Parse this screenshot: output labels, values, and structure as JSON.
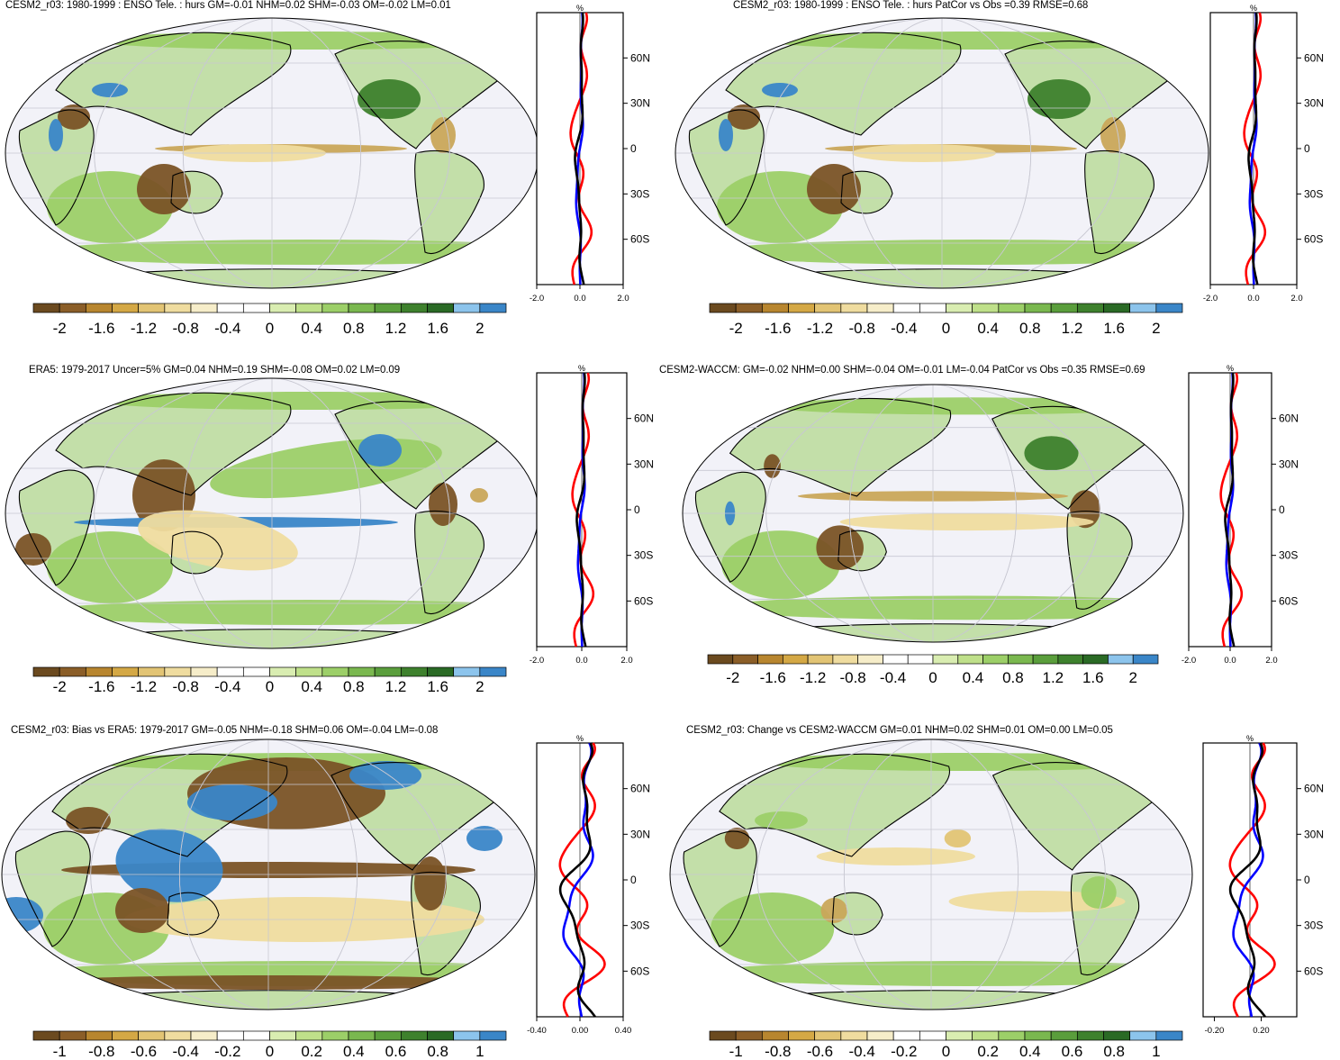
{
  "panels": [
    {
      "title": "CESM2_r03: 1980-1999 : ENSO Tele. : hurs GM=-0.01 NHM=0.02 SHM=-0.03 OM=-0.02 LM=0.01",
      "colorbar_labels": [
        "-2",
        "-1.6",
        "-1.2",
        "-0.8",
        "-0.4",
        "0",
        "0.4",
        "0.8",
        "1.2",
        "1.6",
        "2"
      ],
      "profile_xticks": [
        "-2.0",
        "0.0",
        "2.0"
      ],
      "profile_unit": "%",
      "profile_lat_labels": [
        "60N",
        "30N",
        "0",
        "30S",
        "60S"
      ]
    },
    {
      "title": "CESM2_r03: 1980-1999 : ENSO Tele. : hurs PatCor vs Obs =0.39 RMSE=0.68",
      "colorbar_labels": [
        "-2",
        "-1.6",
        "-1.2",
        "-0.8",
        "-0.4",
        "0",
        "0.4",
        "0.8",
        "1.2",
        "1.6",
        "2"
      ],
      "profile_xticks": [
        "-2.0",
        "0.0",
        "2.0"
      ],
      "profile_unit": "%",
      "profile_lat_labels": [
        "60N",
        "30N",
        "0",
        "30S",
        "60S"
      ]
    },
    {
      "title": "ERA5: 1979-2017 Uncer=5% GM=0.04 NHM=0.19 SHM=-0.08 OM=0.02 LM=0.09",
      "colorbar_labels": [
        "-2",
        "-1.6",
        "-1.2",
        "-0.8",
        "-0.4",
        "0",
        "0.4",
        "0.8",
        "1.2",
        "1.6",
        "2"
      ],
      "profile_xticks": [
        "-2.0",
        "0.0",
        "2.0"
      ],
      "profile_unit": "%",
      "profile_lat_labels": [
        "60N",
        "30N",
        "0",
        "30S",
        "60S"
      ]
    },
    {
      "title": "CESM2-WACCM: GM=-0.02 NHM=0.00 SHM=-0.04 OM=-0.01 LM=-0.04 PatCor vs Obs =0.35 RMSE=0.69",
      "colorbar_labels": [
        "-2",
        "-1.6",
        "-1.2",
        "-0.8",
        "-0.4",
        "0",
        "0.4",
        "0.8",
        "1.2",
        "1.6",
        "2"
      ],
      "profile_xticks": [
        "-2.0",
        "0.0",
        "2.0"
      ],
      "profile_unit": "%",
      "profile_lat_labels": [
        "60N",
        "30N",
        "0",
        "30S",
        "60S"
      ]
    },
    {
      "title": "CESM2_r03: Bias vs ERA5: 1979-2017 GM=-0.05 NHM=-0.18 SHM=0.06 OM=-0.04 LM=-0.08",
      "colorbar_labels": [
        "-1",
        "-0.8",
        "-0.6",
        "-0.4",
        "-0.2",
        "0",
        "0.2",
        "0.4",
        "0.6",
        "0.8",
        "1"
      ],
      "profile_xticks": [
        "-0.40",
        "0.00",
        "0.40"
      ],
      "profile_unit": "%",
      "profile_lat_labels": [
        "60N",
        "30N",
        "0",
        "30S",
        "60S"
      ]
    },
    {
      "title": "CESM2_r03: Change vs CESM2-WACCM GM=0.01 NHM=0.02 SHM=0.01 OM=0.00 LM=0.05",
      "colorbar_labels": [
        "-1",
        "-0.8",
        "-0.6",
        "-0.4",
        "-0.2",
        "0",
        "0.2",
        "0.4",
        "0.6",
        "0.8",
        "1"
      ],
      "profile_xticks": [
        "-0.20",
        "0.20"
      ],
      "profile_unit": "%",
      "profile_lat_labels": [
        "60N",
        "30N",
        "0",
        "30S",
        "60S"
      ]
    }
  ],
  "colors": {
    "colorbar": [
      "#6b4a1f",
      "#8b5e28",
      "#b8862f",
      "#d4a845",
      "#e2c474",
      "#efdc9f",
      "#f6edc9",
      "#ffffff",
      "#ffffff",
      "#d9edb1",
      "#bfe08a",
      "#9ccf68",
      "#7ab84f",
      "#5a9e3c",
      "#3e812d",
      "#2a6a25",
      "#8cc4ec",
      "#3a86c8"
    ],
    "ocean": "#f2f2f8",
    "land_green": "#9ccf68",
    "land_brown": "#7a5326",
    "tan": "#efdc9f",
    "blue": "#3a86c8",
    "line_red": "#ff0000",
    "line_blue": "#0000ff",
    "line_black": "#000000"
  }
}
